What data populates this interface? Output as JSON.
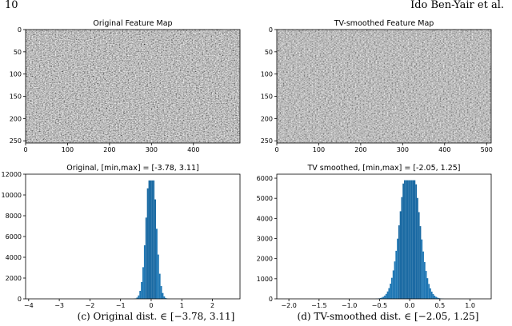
{
  "header": {
    "page_number": "10",
    "authors": "Ido Ben-Yair et al."
  },
  "captions": {
    "c": "(c) Original dist. ∈ [−3.78, 3.11]",
    "d": "(d) TV-smoothed dist. ∈ [−2.05, 1.25]"
  },
  "colors": {
    "bar": "#1f77b4",
    "bar_dark": "#1a6aa3",
    "axis": "#000000"
  },
  "chart_data": [
    {
      "type": "heatmap",
      "title": "Original Feature Map",
      "y_ticks": [
        "0",
        "50",
        "100",
        "150",
        "200",
        "250"
      ],
      "y_tick_values": [
        0,
        50,
        100,
        150,
        200,
        250
      ],
      "x_ticks": [
        "0",
        "100",
        "200",
        "300",
        "400"
      ],
      "x_tick_values": [
        0,
        100,
        200,
        300,
        400
      ],
      "xlim": [
        0,
        511
      ],
      "ylim": [
        0,
        255
      ],
      "colormap": "gray"
    },
    {
      "type": "heatmap",
      "title": "TV-smoothed Feature Map",
      "y_ticks": [
        "0",
        "50",
        "100",
        "150",
        "200",
        "250"
      ],
      "y_tick_values": [
        0,
        50,
        100,
        150,
        200,
        250
      ],
      "x_ticks": [
        "0",
        "100",
        "200",
        "300",
        "400",
        "500"
      ],
      "x_tick_values": [
        0,
        100,
        200,
        300,
        400,
        500
      ],
      "xlim": [
        0,
        511
      ],
      "ylim": [
        0,
        255
      ],
      "colormap": "gray"
    },
    {
      "type": "bar",
      "title": "Original, [min,max] = [-3.78, 3.11]",
      "xlim": [
        -4.1,
        2.9
      ],
      "ylim": [
        0,
        12000
      ],
      "x_ticks": [
        "−4",
        "−3",
        "−2",
        "−1",
        "0",
        "1",
        "2"
      ],
      "x_tick_values": [
        -4,
        -3,
        -2,
        -1,
        0,
        1,
        2
      ],
      "y_ticks": [
        "0",
        "2000",
        "4000",
        "6000",
        "8000",
        "10000",
        "12000"
      ],
      "y_tick_values": [
        0,
        2000,
        4000,
        6000,
        8000,
        10000,
        12000
      ],
      "peak": 11400,
      "center": 0.0,
      "spread": 0.15,
      "range": [
        -3.78,
        3.11
      ]
    },
    {
      "type": "bar",
      "title": "TV smoothed, [min,max] = [-2.05, 1.25]",
      "xlim": [
        -2.2,
        1.35
      ],
      "ylim": [
        0,
        6200
      ],
      "x_ticks": [
        "−2.0",
        "−1.5",
        "−1.0",
        "−0.5",
        "0.0",
        "0.5",
        "1.0"
      ],
      "x_tick_values": [
        -2.0,
        -1.5,
        -1.0,
        -0.5,
        0.0,
        0.5,
        1.0
      ],
      "y_ticks": [
        "0",
        "1000",
        "2000",
        "3000",
        "4000",
        "5000",
        "6000"
      ],
      "y_tick_values": [
        0,
        1000,
        2000,
        3000,
        4000,
        5000,
        6000
      ],
      "peak": 5900,
      "center": 0.0,
      "spread": 0.15,
      "range": [
        -2.05,
        1.25
      ]
    }
  ]
}
